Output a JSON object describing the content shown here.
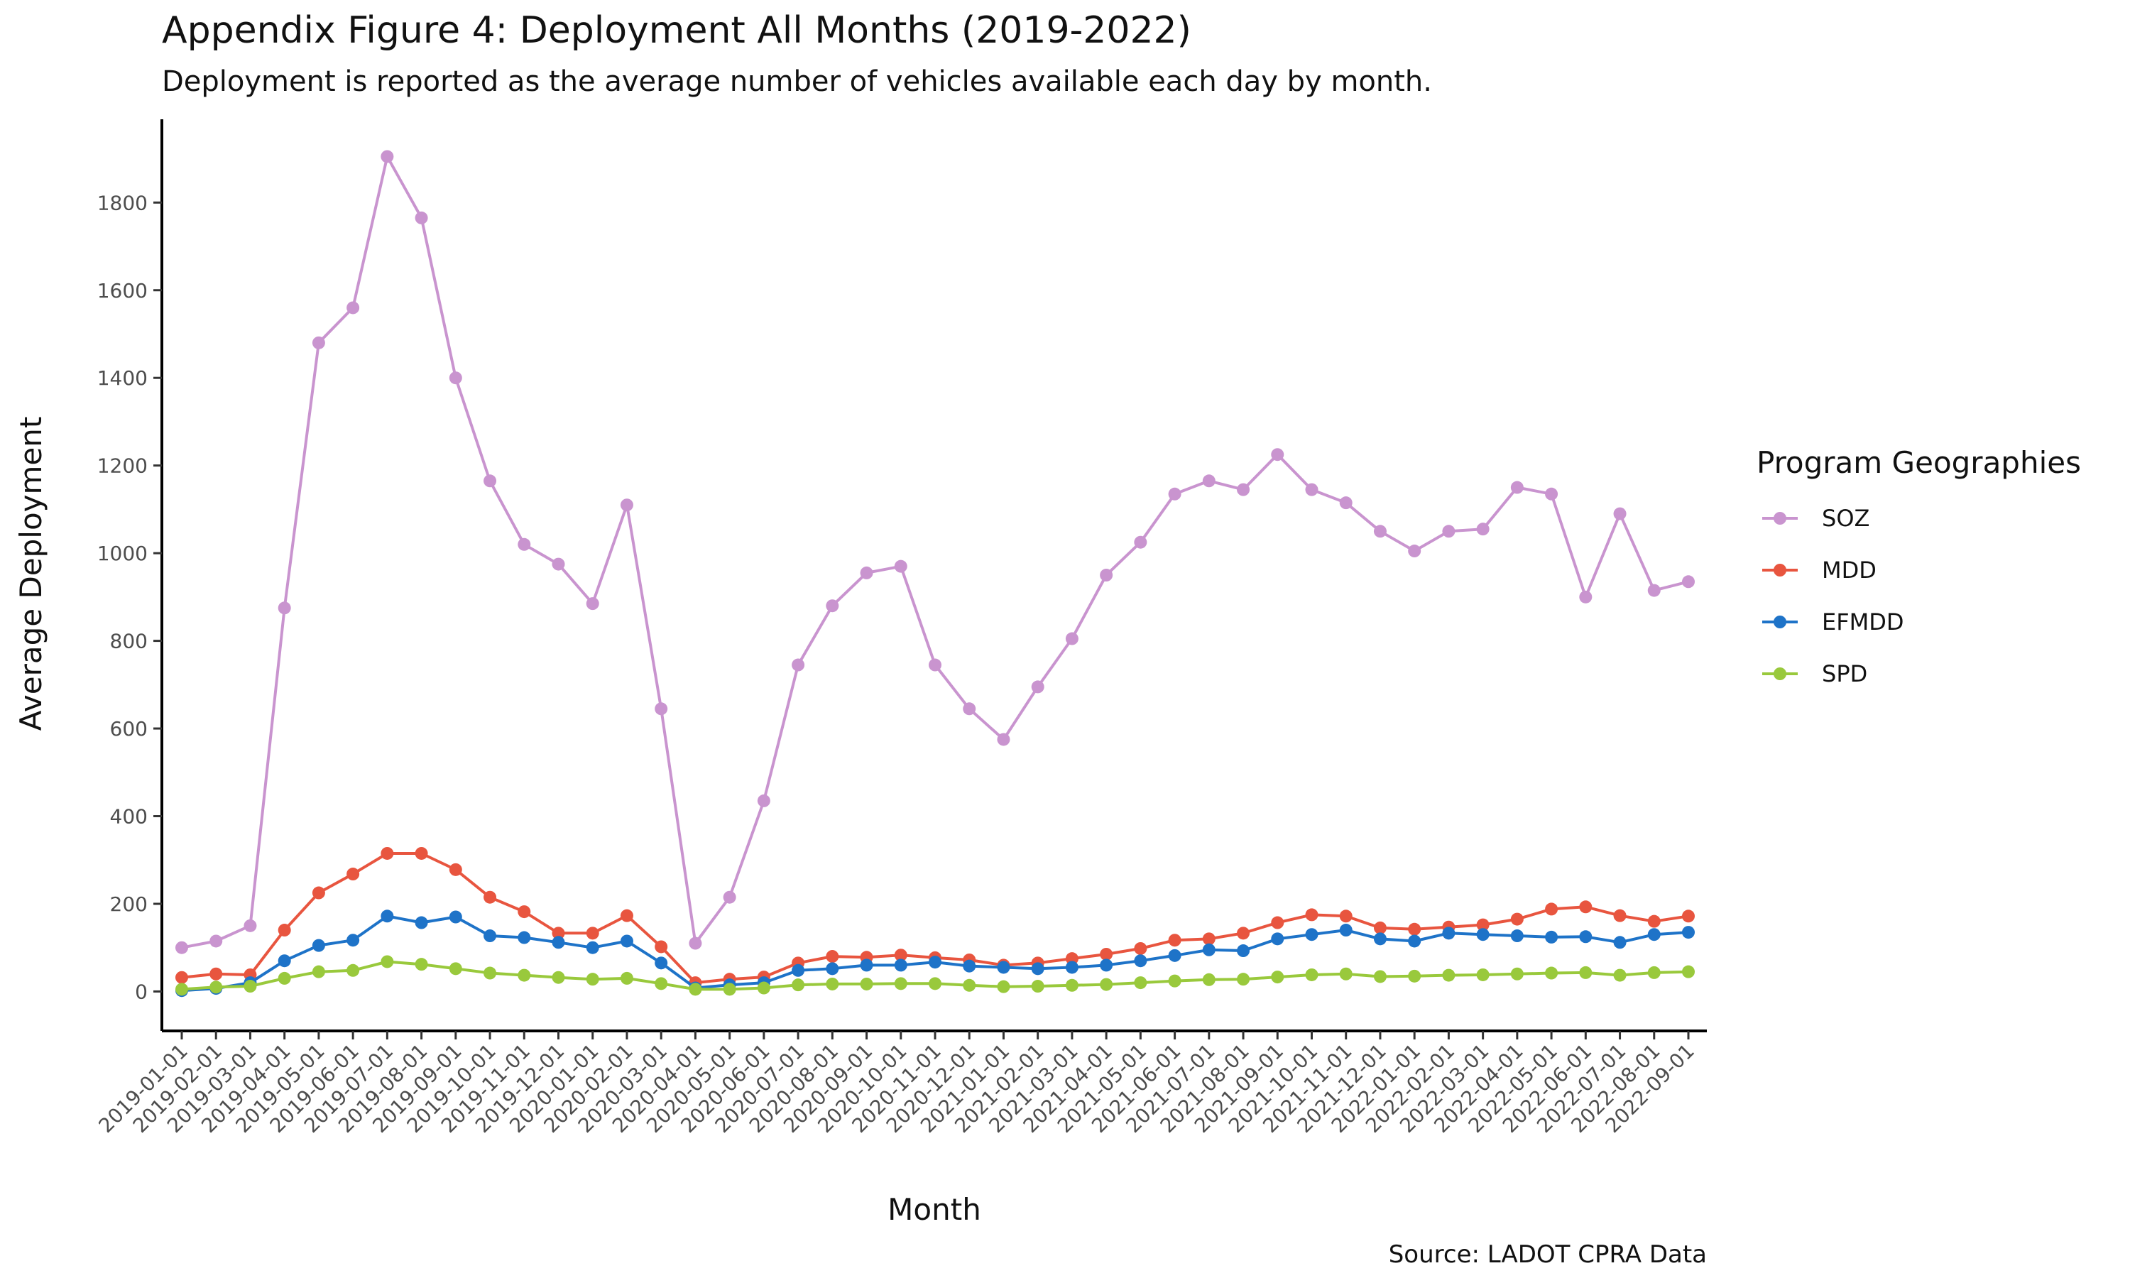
{
  "chart_data": {
    "type": "line",
    "title": "Appendix Figure 4: Deployment All Months (2019-2022)",
    "subtitle": "Deployment is reported as the average number of vehicles available each day by month.",
    "xlabel": "Month",
    "ylabel": "Average Deployment",
    "caption": "Source: LADOT CPRA Data",
    "legend_title": "Program Geographies",
    "legend_position": "right",
    "grid": false,
    "ylim": [
      -90,
      1990
    ],
    "y_ticks": [
      0,
      200,
      400,
      600,
      800,
      1000,
      1200,
      1400,
      1600,
      1800
    ],
    "x": [
      "2019-01-01",
      "2019-02-01",
      "2019-03-01",
      "2019-04-01",
      "2019-05-01",
      "2019-06-01",
      "2019-07-01",
      "2019-08-01",
      "2019-09-01",
      "2019-10-01",
      "2019-11-01",
      "2019-12-01",
      "2020-01-01",
      "2020-02-01",
      "2020-03-01",
      "2020-04-01",
      "2020-05-01",
      "2020-06-01",
      "2020-07-01",
      "2020-08-01",
      "2020-09-01",
      "2020-10-01",
      "2020-11-01",
      "2020-12-01",
      "2021-01-01",
      "2021-02-01",
      "2021-03-01",
      "2021-04-01",
      "2021-05-01",
      "2021-06-01",
      "2021-07-01",
      "2021-08-01",
      "2021-09-01",
      "2021-10-01",
      "2021-11-01",
      "2021-12-01",
      "2022-01-01",
      "2022-02-01",
      "2022-03-01",
      "2022-04-01",
      "2022-05-01",
      "2022-06-01",
      "2022-07-01",
      "2022-08-01",
      "2022-09-01"
    ],
    "series": [
      {
        "name": "SOZ",
        "color": "#c994cf",
        "values": [
          100,
          115,
          150,
          875,
          1480,
          1560,
          1905,
          1765,
          1400,
          1165,
          1020,
          975,
          885,
          1110,
          645,
          110,
          215,
          435,
          745,
          880,
          955,
          970,
          745,
          645,
          575,
          695,
          805,
          950,
          1025,
          1135,
          1165,
          1145,
          1225,
          1145,
          1115,
          1050,
          1005,
          1050,
          1055,
          1150,
          1135,
          900,
          1090,
          915,
          935
        ]
      },
      {
        "name": "MDD",
        "color": "#e8553f",
        "values": [
          32,
          40,
          38,
          140,
          225,
          268,
          315,
          315,
          278,
          215,
          182,
          133,
          133,
          173,
          102,
          20,
          28,
          33,
          65,
          80,
          78,
          83,
          77,
          72,
          60,
          65,
          75,
          85,
          98,
          117,
          120,
          133,
          157,
          175,
          172,
          145,
          142,
          147,
          152,
          165,
          188,
          193,
          173,
          160,
          172
        ]
      },
      {
        "name": "EFMDD",
        "color": "#1e73c8",
        "values": [
          2,
          7,
          20,
          70,
          105,
          117,
          172,
          157,
          170,
          127,
          123,
          112,
          100,
          115,
          65,
          8,
          15,
          20,
          48,
          52,
          60,
          60,
          67,
          58,
          55,
          52,
          55,
          60,
          70,
          82,
          95,
          93,
          120,
          130,
          140,
          120,
          115,
          133,
          130,
          127,
          124,
          125,
          112,
          130,
          135
        ]
      },
      {
        "name": "SPD",
        "color": "#99c93c",
        "values": [
          5,
          10,
          12,
          30,
          45,
          48,
          68,
          62,
          52,
          42,
          37,
          32,
          28,
          30,
          18,
          5,
          5,
          8,
          15,
          17,
          17,
          18,
          18,
          14,
          11,
          12,
          14,
          16,
          20,
          24,
          27,
          28,
          33,
          38,
          40,
          34,
          35,
          37,
          38,
          40,
          42,
          43,
          37,
          43,
          45
        ]
      }
    ]
  }
}
